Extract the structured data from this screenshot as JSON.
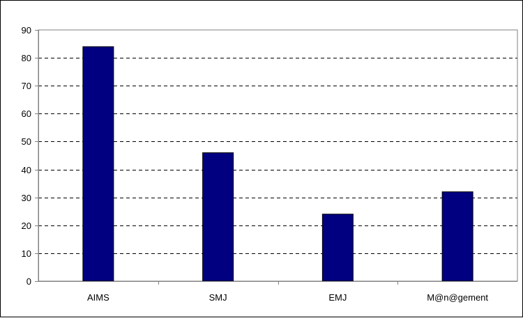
{
  "chart_data": {
    "type": "bar",
    "categories": [
      "AIMS",
      "SMJ",
      "EMJ",
      "M@n@gement"
    ],
    "values": [
      84,
      46,
      24,
      32
    ],
    "title": "",
    "xlabel": "",
    "ylabel": "",
    "ylim": [
      0,
      90
    ],
    "yticks": [
      0,
      10,
      20,
      30,
      40,
      50,
      60,
      70,
      80,
      90
    ],
    "grid": true,
    "grid_style": "dashed",
    "legend": "none",
    "colors": {
      "bar_fill": "#000080",
      "bar_stroke": "#000000",
      "grid": "#000000",
      "axis": "#808080",
      "plot_border": "#808080"
    }
  }
}
